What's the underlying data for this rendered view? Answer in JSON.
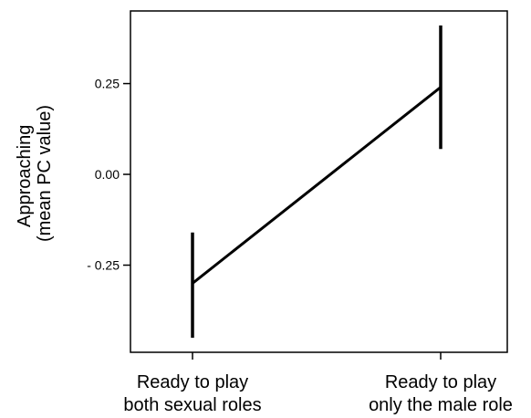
{
  "chart_data": {
    "type": "line",
    "title": "",
    "xlabel": "",
    "ylabel": [
      "Approaching",
      "(mean PC value)"
    ],
    "categories": [
      [
        "Ready to play",
        "both sexual roles"
      ],
      [
        "Ready to play",
        "only the male role"
      ]
    ],
    "series": [
      {
        "values": [
          -0.3,
          0.24
        ],
        "error_low": [
          -0.45,
          0.07
        ],
        "error_high": [
          -0.16,
          0.41
        ]
      }
    ],
    "yticks": [
      -0.25,
      0.0,
      0.25
    ],
    "ytick_labels": [
      "- 0.25",
      "0.00",
      "0.25"
    ],
    "ylim": [
      -0.49,
      0.45
    ],
    "grid": false,
    "legend": "none",
    "colors": {
      "line": "#000000",
      "axis": "#000000",
      "background": "#ffffff"
    }
  }
}
